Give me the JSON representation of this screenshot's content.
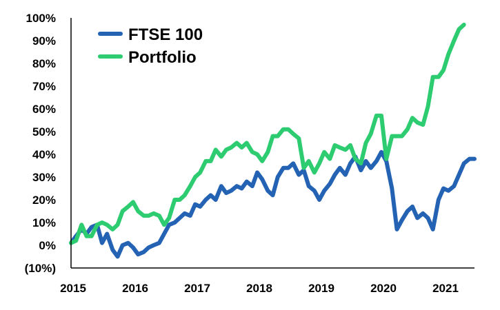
{
  "chart_data": {
    "type": "line",
    "title": "",
    "xlabel": "",
    "ylabel": "",
    "xlim": [
      2015,
      2021.5
    ],
    "ylim": [
      -10,
      100
    ],
    "x_ticks": [
      2015,
      2016,
      2017,
      2018,
      2019,
      2020,
      2021
    ],
    "x_tick_labels": [
      "2015",
      "2016",
      "2017",
      "2018",
      "2019",
      "2020",
      "2021"
    ],
    "y_ticks": [
      -10,
      0,
      10,
      20,
      30,
      40,
      50,
      60,
      70,
      80,
      90,
      100
    ],
    "y_tick_labels": [
      "(10%)",
      "0%",
      "10%",
      "20%",
      "30%",
      "40%",
      "50%",
      "60%",
      "70%",
      "80%",
      "90%",
      "100%"
    ],
    "grid": false,
    "legend": "top-left",
    "series": [
      {
        "name": "FTSE 100",
        "color": "#2462b4",
        "points": [
          [
            2015.0,
            1
          ],
          [
            2015.08,
            4
          ],
          [
            2015.17,
            7
          ],
          [
            2015.25,
            5
          ],
          [
            2015.33,
            8
          ],
          [
            2015.42,
            9
          ],
          [
            2015.5,
            1
          ],
          [
            2015.58,
            5
          ],
          [
            2015.67,
            -2
          ],
          [
            2015.75,
            -5
          ],
          [
            2015.83,
            0
          ],
          [
            2015.92,
            1
          ],
          [
            2016.0,
            -1
          ],
          [
            2016.08,
            -4
          ],
          [
            2016.17,
            -3
          ],
          [
            2016.25,
            -1
          ],
          [
            2016.33,
            0
          ],
          [
            2016.42,
            1
          ],
          [
            2016.5,
            5
          ],
          [
            2016.58,
            9
          ],
          [
            2016.67,
            10
          ],
          [
            2016.75,
            12
          ],
          [
            2016.83,
            14
          ],
          [
            2016.92,
            13
          ],
          [
            2017.0,
            18
          ],
          [
            2017.08,
            17
          ],
          [
            2017.17,
            20
          ],
          [
            2017.25,
            22
          ],
          [
            2017.33,
            20
          ],
          [
            2017.42,
            26
          ],
          [
            2017.5,
            23
          ],
          [
            2017.58,
            24
          ],
          [
            2017.67,
            26
          ],
          [
            2017.75,
            25
          ],
          [
            2017.83,
            28
          ],
          [
            2017.92,
            26
          ],
          [
            2018.0,
            32
          ],
          [
            2018.08,
            29
          ],
          [
            2018.17,
            24
          ],
          [
            2018.25,
            22
          ],
          [
            2018.33,
            30
          ],
          [
            2018.42,
            34
          ],
          [
            2018.5,
            34
          ],
          [
            2018.58,
            36
          ],
          [
            2018.67,
            31
          ],
          [
            2018.75,
            33
          ],
          [
            2018.83,
            26
          ],
          [
            2018.92,
            24
          ],
          [
            2019.0,
            20
          ],
          [
            2019.08,
            24
          ],
          [
            2019.17,
            27
          ],
          [
            2019.25,
            31
          ],
          [
            2019.33,
            34
          ],
          [
            2019.42,
            31
          ],
          [
            2019.5,
            36
          ],
          [
            2019.58,
            39
          ],
          [
            2019.67,
            33
          ],
          [
            2019.75,
            37
          ],
          [
            2019.83,
            34
          ],
          [
            2019.92,
            37
          ],
          [
            2020.0,
            41
          ],
          [
            2020.08,
            37
          ],
          [
            2020.17,
            25
          ],
          [
            2020.25,
            7
          ],
          [
            2020.33,
            11
          ],
          [
            2020.42,
            15
          ],
          [
            2020.5,
            17
          ],
          [
            2020.58,
            12
          ],
          [
            2020.67,
            14
          ],
          [
            2020.75,
            12
          ],
          [
            2020.83,
            7
          ],
          [
            2020.92,
            20
          ],
          [
            2021.0,
            25
          ],
          [
            2021.08,
            24
          ],
          [
            2021.17,
            26
          ],
          [
            2021.25,
            31
          ],
          [
            2021.33,
            36
          ],
          [
            2021.42,
            38
          ],
          [
            2021.5,
            38
          ]
        ]
      },
      {
        "name": "Portfolio",
        "color": "#2ecc71",
        "points": [
          [
            2015.0,
            1
          ],
          [
            2015.08,
            2
          ],
          [
            2015.17,
            9
          ],
          [
            2015.25,
            4
          ],
          [
            2015.33,
            4
          ],
          [
            2015.42,
            9
          ],
          [
            2015.5,
            10
          ],
          [
            2015.58,
            9
          ],
          [
            2015.67,
            7
          ],
          [
            2015.75,
            9
          ],
          [
            2015.83,
            15
          ],
          [
            2015.92,
            17
          ],
          [
            2016.0,
            19
          ],
          [
            2016.08,
            15
          ],
          [
            2016.17,
            13
          ],
          [
            2016.25,
            13
          ],
          [
            2016.33,
            14
          ],
          [
            2016.42,
            13
          ],
          [
            2016.5,
            9
          ],
          [
            2016.58,
            12
          ],
          [
            2016.67,
            20
          ],
          [
            2016.75,
            20
          ],
          [
            2016.83,
            22
          ],
          [
            2016.92,
            26
          ],
          [
            2017.0,
            30
          ],
          [
            2017.08,
            32
          ],
          [
            2017.17,
            37
          ],
          [
            2017.25,
            37
          ],
          [
            2017.33,
            42
          ],
          [
            2017.42,
            39
          ],
          [
            2017.5,
            42
          ],
          [
            2017.58,
            43
          ],
          [
            2017.67,
            45
          ],
          [
            2017.75,
            43
          ],
          [
            2017.83,
            45
          ],
          [
            2017.92,
            41
          ],
          [
            2018.0,
            40
          ],
          [
            2018.08,
            37
          ],
          [
            2018.17,
            41
          ],
          [
            2018.25,
            48
          ],
          [
            2018.33,
            48
          ],
          [
            2018.42,
            51
          ],
          [
            2018.5,
            51
          ],
          [
            2018.58,
            49
          ],
          [
            2018.67,
            47
          ],
          [
            2018.75,
            34
          ],
          [
            2018.83,
            37
          ],
          [
            2018.92,
            32
          ],
          [
            2019.0,
            36
          ],
          [
            2019.08,
            41
          ],
          [
            2019.17,
            38
          ],
          [
            2019.25,
            44
          ],
          [
            2019.33,
            43
          ],
          [
            2019.42,
            42
          ],
          [
            2019.5,
            44
          ],
          [
            2019.58,
            38
          ],
          [
            2019.67,
            36
          ],
          [
            2019.75,
            45
          ],
          [
            2019.83,
            49
          ],
          [
            2019.92,
            57
          ],
          [
            2020.0,
            57
          ],
          [
            2020.08,
            38
          ],
          [
            2020.17,
            48
          ],
          [
            2020.25,
            48
          ],
          [
            2020.33,
            48
          ],
          [
            2020.42,
            51
          ],
          [
            2020.5,
            56
          ],
          [
            2020.58,
            54
          ],
          [
            2020.67,
            53
          ],
          [
            2020.75,
            61
          ],
          [
            2020.83,
            74
          ],
          [
            2020.92,
            74
          ],
          [
            2021.0,
            77
          ],
          [
            2021.08,
            84
          ],
          [
            2021.17,
            90
          ],
          [
            2021.25,
            95
          ],
          [
            2021.33,
            97
          ]
        ]
      }
    ]
  }
}
